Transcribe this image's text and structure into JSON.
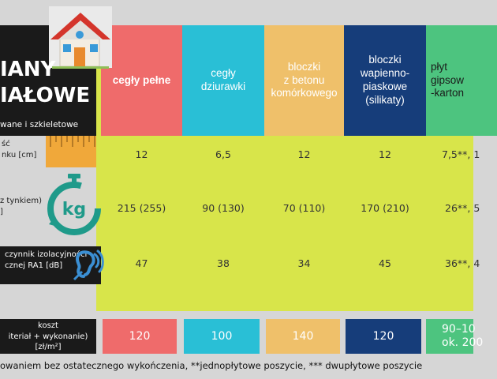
{
  "title_lines": [
    "IANY",
    "IAŁOWE"
  ],
  "subtitle": "wane i szkieletowe",
  "row_labels": {
    "thickness": [
      "ść",
      "nku [cm]"
    ],
    "weight": [
      "z tynkiem)",
      "]"
    ],
    "acoustic": [
      "czynnik izolacyjności",
      "cznej RA1 [dB]"
    ],
    "cost": [
      "koszt",
      "iteriał + wykonanie)",
      "[zł/m²]"
    ]
  },
  "columns": [
    {
      "header": "cegły pełne",
      "color": "#ef6b6b",
      "thickness": "12",
      "weight": "215 (255)",
      "acoustic": "47",
      "cost": "120"
    },
    {
      "header": "cegły dziurawki",
      "color": "#29bfd6",
      "thickness": "6,5",
      "weight": "90 (130)",
      "acoustic": "38",
      "cost": "100"
    },
    {
      "header": "bloczki z betonu komórkowego",
      "color": "#efc06a",
      "thickness": "12",
      "weight": "70 (110)",
      "acoustic": "34",
      "cost": "140"
    },
    {
      "header": "bloczki wapienno-piaskowe (silikaty)",
      "color": "#163d7a",
      "thickness": "12",
      "weight": "170 (210)",
      "acoustic": "45",
      "cost": "120"
    },
    {
      "header": "płyt gipsow -karton",
      "color": "#4dc47f",
      "thickness": "7,5**, 1",
      "weight": "26**, 5",
      "acoustic": "36**, 4",
      "cost": "90–10 ok. 200"
    }
  ],
  "footnote": "owaniem bez ostatecznego wykończenia, **jednopłytowe poszycie, *** dwupłytowe poszycie",
  "icons": [
    "house-icon",
    "ruler-icon",
    "weight-timer-icon",
    "hearing-icon"
  ]
}
